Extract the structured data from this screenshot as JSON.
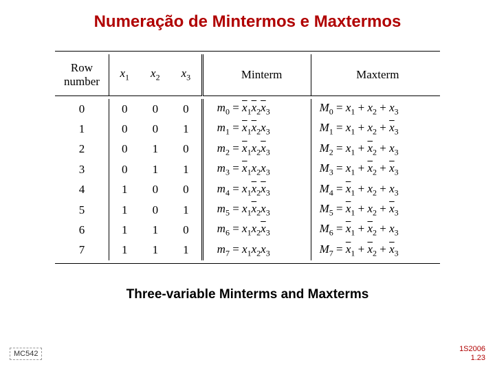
{
  "title": "Numeração de Mintermos e Maxtermos",
  "caption": "Three-variable Minterms and Maxterms",
  "footer_left": "MC542",
  "footer_right_line1": "1S2006",
  "footer_right_line2": "1.23",
  "headers": {
    "row_l1": "Row",
    "row_l2": "number",
    "minterm": "Minterm",
    "maxterm": "Maxterm"
  },
  "table": {
    "rows": [
      0,
      1,
      2,
      3,
      4,
      5,
      6,
      7
    ],
    "bits": [
      [
        0,
        0,
        0
      ],
      [
        0,
        0,
        1
      ],
      [
        0,
        1,
        0
      ],
      [
        0,
        1,
        1
      ],
      [
        1,
        0,
        0
      ],
      [
        1,
        0,
        1
      ],
      [
        1,
        1,
        0
      ],
      [
        1,
        1,
        1
      ]
    ]
  },
  "style": {
    "title_color": "#b00000",
    "footer_right_color": "#b00000",
    "rule_color": "#000000",
    "background": "#ffffff",
    "title_fontsize": 24,
    "body_fontsize": 17,
    "caption_fontsize": 19
  }
}
